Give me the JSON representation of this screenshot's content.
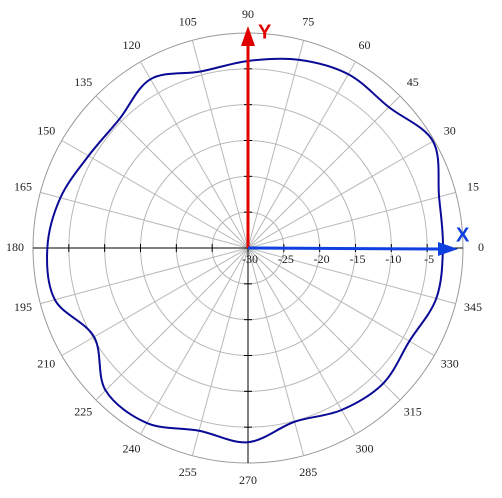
{
  "chart_data": {
    "type": "polar",
    "theta": [
      0,
      15,
      30,
      45,
      60,
      75,
      90,
      105,
      120,
      135,
      150,
      165,
      180,
      195,
      210,
      225,
      240,
      255,
      270,
      285,
      300,
      315,
      330,
      345
    ],
    "series": [
      {
        "color": "#0a0a96",
        "values": [
          -2.8,
          -2.4,
          -0.2,
          -2.2,
          -2.0,
          -2.8,
          -3.9,
          -4.5,
          -2.8,
          -4.6,
          -4.3,
          -2.9,
          -2.0,
          -2.1,
          -5.2,
          -1.9,
          -1.8,
          -3.6,
          -2.9,
          -4.9,
          -3.9,
          -3.3,
          -4.0,
          -2.8
        ]
      }
    ],
    "rlim": [
      -30,
      0
    ],
    "rticks": [
      -30,
      -25,
      -20,
      -15,
      -10,
      -5
    ],
    "thetaticks": [
      0,
      15,
      30,
      45,
      60,
      75,
      90,
      105,
      120,
      135,
      150,
      165,
      180,
      195,
      210,
      225,
      240,
      255,
      270,
      285,
      300,
      315,
      330,
      345
    ],
    "x_arrow_label": "X",
    "y_arrow_label": "Y",
    "grid": true
  }
}
